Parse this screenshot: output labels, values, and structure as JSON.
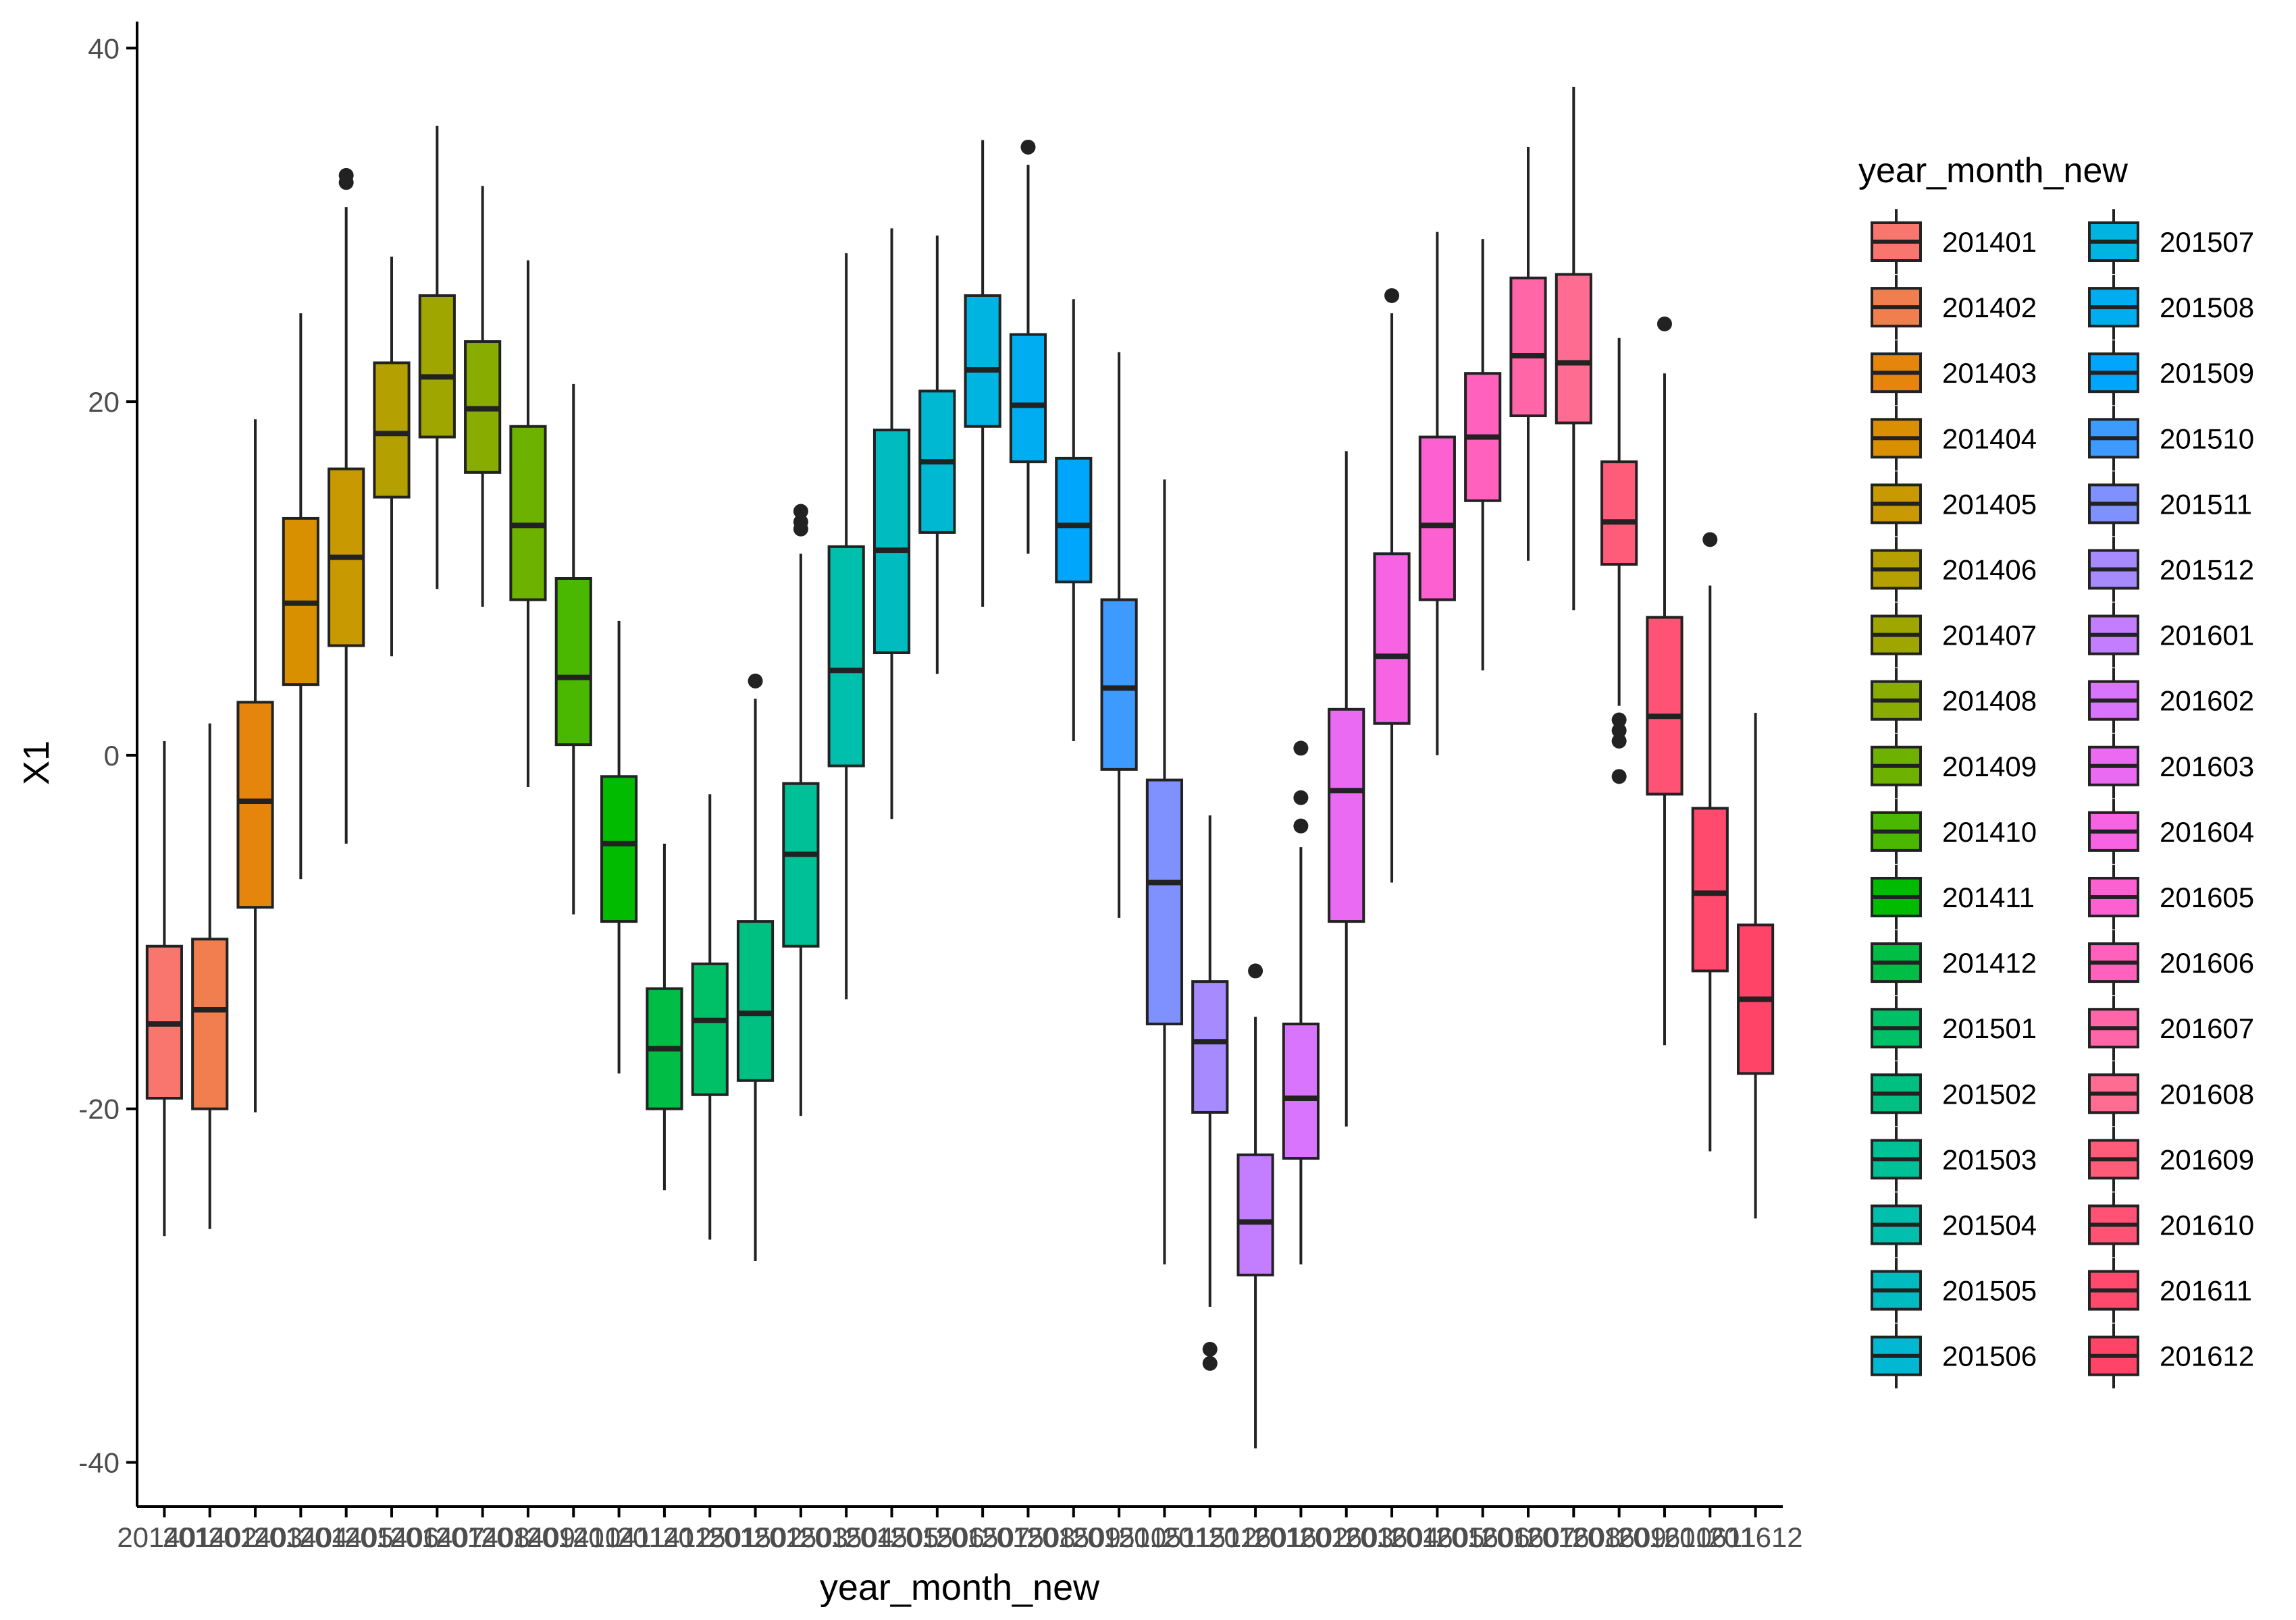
{
  "chart_data": {
    "type": "boxplot",
    "title": "",
    "xlabel": "year_month_new",
    "ylabel": "X1",
    "ylim": [
      -42.5,
      41.5
    ],
    "yticks": [
      -40,
      -20,
      0,
      20,
      40
    ],
    "ytick_labels": [
      "-40",
      "-20",
      "0",
      "20",
      "40"
    ],
    "legend": {
      "title": "year_month_new",
      "placement": "right",
      "columns": 2
    },
    "categories": [
      "201401",
      "201402",
      "201403",
      "201404",
      "201405",
      "201406",
      "201407",
      "201408",
      "201409",
      "201410",
      "201411",
      "201412",
      "201501",
      "201502",
      "201503",
      "201504",
      "201505",
      "201506",
      "201507",
      "201508",
      "201509",
      "201510",
      "201511",
      "201512",
      "201601",
      "201602",
      "201603",
      "201604",
      "201605",
      "201606",
      "201607",
      "201608",
      "201609",
      "201610",
      "201611",
      "201612"
    ],
    "colors": [
      "#F8766D",
      "#F07E4E",
      "#E6850C",
      "#D89000",
      "#C89900",
      "#B4A000",
      "#A0A600",
      "#89AC00",
      "#6EB200",
      "#4AB700",
      "#00BB00",
      "#00BE45",
      "#00C067",
      "#00C081",
      "#00C098",
      "#00BFAD",
      "#00BCC0",
      "#00B8D1",
      "#00B4E2",
      "#00ADF0",
      "#00A5FC",
      "#3D9BFF",
      "#7F91FF",
      "#A68AFF",
      "#C37EFF",
      "#D874FD",
      "#EA6AF1",
      "#F663E3",
      "#FD61D1",
      "#FF61BD",
      "#FF66A8",
      "#FF6C91",
      "#FF5C7A",
      "#FF5274",
      "#FF4A6E",
      "#FF4468"
    ],
    "boxes": [
      {
        "label": "201401",
        "min": -27.2,
        "q1": -19.4,
        "median": -15.2,
        "q3": -10.8,
        "max": 0.8,
        "outliers": []
      },
      {
        "label": "201402",
        "min": -26.8,
        "q1": -20.0,
        "median": -14.4,
        "q3": -10.4,
        "max": 1.8,
        "outliers": []
      },
      {
        "label": "201403",
        "min": -20.2,
        "q1": -8.6,
        "median": -2.6,
        "q3": 3.0,
        "max": 19.0,
        "outliers": []
      },
      {
        "label": "201404",
        "min": -7.0,
        "q1": 4.0,
        "median": 8.6,
        "q3": 13.4,
        "max": 25.0,
        "outliers": []
      },
      {
        "label": "201405",
        "min": -5.0,
        "q1": 6.2,
        "median": 11.2,
        "q3": 16.2,
        "max": 31.0,
        "outliers": [
          32.4,
          32.8
        ]
      },
      {
        "label": "201406",
        "min": 5.6,
        "q1": 14.6,
        "median": 18.2,
        "q3": 22.2,
        "max": 28.2,
        "outliers": []
      },
      {
        "label": "201407",
        "min": 9.4,
        "q1": 18.0,
        "median": 21.4,
        "q3": 26.0,
        "max": 35.6,
        "outliers": []
      },
      {
        "label": "201408",
        "min": 8.4,
        "q1": 16.0,
        "median": 19.6,
        "q3": 23.4,
        "max": 32.2,
        "outliers": []
      },
      {
        "label": "201409",
        "min": -1.8,
        "q1": 8.8,
        "median": 13.0,
        "q3": 18.6,
        "max": 28.0,
        "outliers": []
      },
      {
        "label": "201410",
        "min": -9.0,
        "q1": 0.6,
        "median": 4.4,
        "q3": 10.0,
        "max": 21.0,
        "outliers": []
      },
      {
        "label": "201411",
        "min": -18.0,
        "q1": -9.4,
        "median": -5.0,
        "q3": -1.2,
        "max": 7.6,
        "outliers": []
      },
      {
        "label": "201412",
        "min": -24.6,
        "q1": -20.0,
        "median": -16.6,
        "q3": -13.2,
        "max": -5.0,
        "outliers": []
      },
      {
        "label": "201501",
        "min": -27.4,
        "q1": -19.2,
        "median": -15.0,
        "q3": -11.8,
        "max": -2.2,
        "outliers": []
      },
      {
        "label": "201502",
        "min": -28.6,
        "q1": -18.4,
        "median": -14.6,
        "q3": -9.4,
        "max": 3.2,
        "outliers": [
          4.2
        ]
      },
      {
        "label": "201503",
        "min": -20.4,
        "q1": -10.8,
        "median": -5.6,
        "q3": -1.6,
        "max": 11.4,
        "outliers": [
          12.8,
          13.2,
          13.8
        ]
      },
      {
        "label": "201504",
        "min": -13.8,
        "q1": -0.6,
        "median": 4.8,
        "q3": 11.8,
        "max": 28.4,
        "outliers": []
      },
      {
        "label": "201505",
        "min": -3.6,
        "q1": 5.8,
        "median": 11.6,
        "q3": 18.4,
        "max": 29.8,
        "outliers": []
      },
      {
        "label": "201506",
        "min": 4.6,
        "q1": 12.6,
        "median": 16.6,
        "q3": 20.6,
        "max": 29.4,
        "outliers": []
      },
      {
        "label": "201507",
        "min": 8.4,
        "q1": 18.6,
        "median": 21.8,
        "q3": 26.0,
        "max": 34.8,
        "outliers": []
      },
      {
        "label": "201508",
        "min": 11.4,
        "q1": 16.6,
        "median": 19.8,
        "q3": 23.8,
        "max": 33.4,
        "outliers": [
          34.4
        ]
      },
      {
        "label": "201509",
        "min": 0.8,
        "q1": 9.8,
        "median": 13.0,
        "q3": 16.8,
        "max": 25.8,
        "outliers": []
      },
      {
        "label": "201510",
        "min": -9.2,
        "q1": -0.8,
        "median": 3.8,
        "q3": 8.8,
        "max": 22.8,
        "outliers": []
      },
      {
        "label": "201511",
        "min": -28.8,
        "q1": -15.2,
        "median": -7.2,
        "q3": -1.4,
        "max": 15.6,
        "outliers": []
      },
      {
        "label": "201512",
        "min": -31.2,
        "q1": -20.2,
        "median": -16.2,
        "q3": -12.8,
        "max": -3.4,
        "outliers": [
          -33.6,
          -34.4
        ]
      },
      {
        "label": "201601",
        "min": -39.2,
        "q1": -29.4,
        "median": -26.4,
        "q3": -22.6,
        "max": -14.8,
        "outliers": [
          -12.2
        ]
      },
      {
        "label": "201602",
        "min": -28.8,
        "q1": -22.8,
        "median": -19.4,
        "q3": -15.2,
        "max": -5.2,
        "outliers": [
          -4.0,
          -2.4,
          0.4
        ]
      },
      {
        "label": "201603",
        "min": -21.0,
        "q1": -9.4,
        "median": -2.0,
        "q3": 2.6,
        "max": 17.2,
        "outliers": []
      },
      {
        "label": "201604",
        "min": -7.2,
        "q1": 1.8,
        "median": 5.6,
        "q3": 11.4,
        "max": 25.0,
        "outliers": [
          26.0
        ]
      },
      {
        "label": "201605",
        "min": 0.0,
        "q1": 8.8,
        "median": 13.0,
        "q3": 18.0,
        "max": 29.6,
        "outliers": []
      },
      {
        "label": "201606",
        "min": 4.8,
        "q1": 14.4,
        "median": 18.0,
        "q3": 21.6,
        "max": 29.2,
        "outliers": []
      },
      {
        "label": "201607",
        "min": 11.0,
        "q1": 19.2,
        "median": 22.6,
        "q3": 27.0,
        "max": 34.4,
        "outliers": []
      },
      {
        "label": "201608",
        "min": 8.2,
        "q1": 18.8,
        "median": 22.2,
        "q3": 27.2,
        "max": 37.8,
        "outliers": []
      },
      {
        "label": "201609",
        "min": 2.8,
        "q1": 10.8,
        "median": 13.2,
        "q3": 16.6,
        "max": 23.6,
        "outliers": [
          -1.2,
          0.8,
          1.4,
          2.0
        ]
      },
      {
        "label": "201610",
        "min": -16.4,
        "q1": -2.2,
        "median": 2.2,
        "q3": 7.8,
        "max": 21.6,
        "outliers": [
          24.4
        ]
      },
      {
        "label": "201611",
        "min": -22.4,
        "q1": -12.2,
        "median": -7.8,
        "q3": -3.0,
        "max": 9.6,
        "outliers": [
          12.2
        ]
      },
      {
        "label": "201612",
        "min": -26.2,
        "q1": -18.0,
        "median": -13.8,
        "q3": -9.6,
        "max": 2.4,
        "outliers": []
      }
    ]
  }
}
